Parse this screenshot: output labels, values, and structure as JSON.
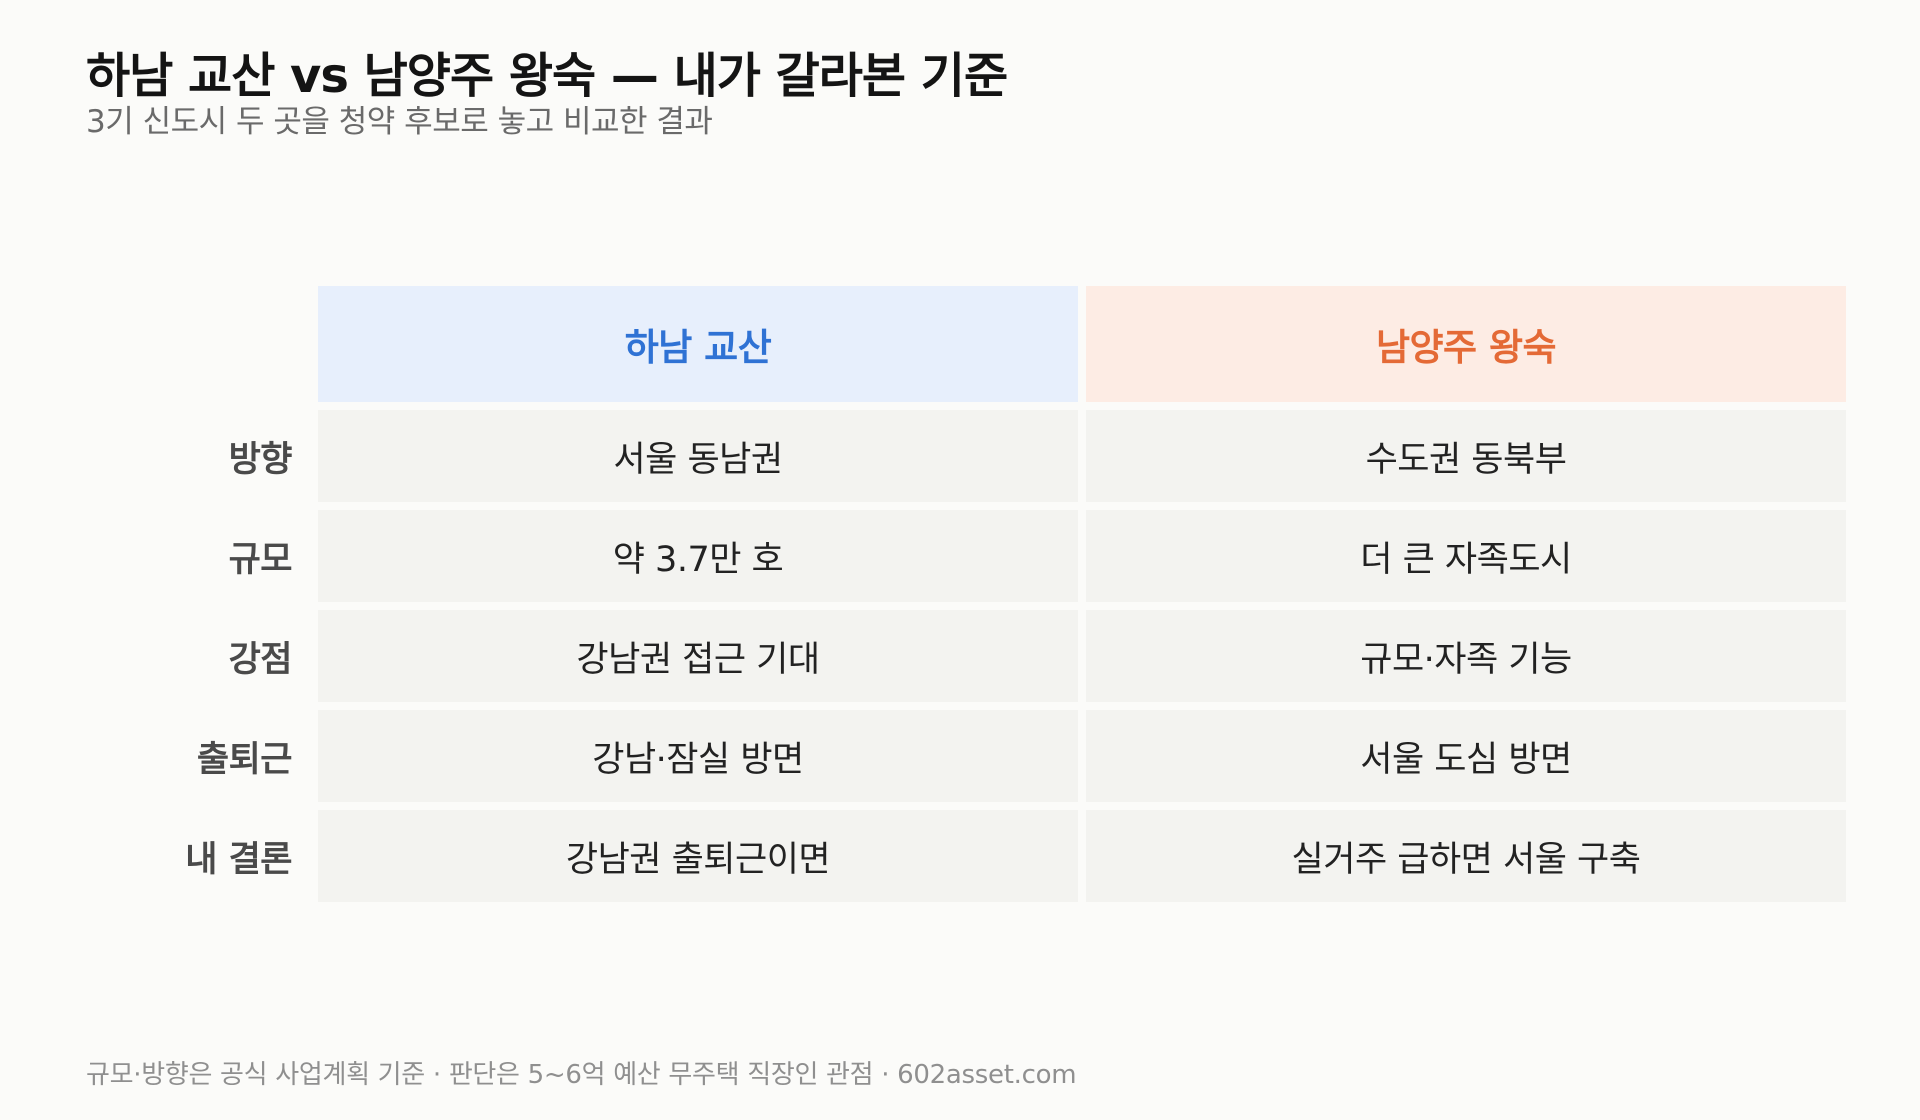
{
  "title": "하남 교산 vs 남양주 왕숙 — 내가 갈라본 기준",
  "subtitle": "3기 신도시 두 곳을 청약 후보로 놓고 비교한 결과",
  "footer": "규모·방향은 공식 사업계획 기준 · 판단은 5~6억 예산 무주택 직장인 관점 · 602asset.com",
  "colors": {
    "background": "#fbfbf9",
    "accent_a": "#2f72d4",
    "accent_a_bg": "#e7effc",
    "accent_b": "#e46a36",
    "accent_b_bg": "#fdece4",
    "cell_bg": "#f3f3f0"
  },
  "chart_data": {
    "type": "table",
    "columns": [
      "하남 교산",
      "남양주 왕숙"
    ],
    "rows": [
      {
        "label": "방향",
        "values": [
          "서울 동남권",
          "수도권 동북부"
        ]
      },
      {
        "label": "규모",
        "values": [
          "약 3.7만 호",
          "더 큰 자족도시"
        ]
      },
      {
        "label": "강점",
        "values": [
          "강남권 접근 기대",
          "규모·자족 기능"
        ]
      },
      {
        "label": "출퇴근",
        "values": [
          "강남·잠실 방면",
          "서울 도심 방면"
        ]
      },
      {
        "label": "내 결론",
        "values": [
          "강남권 출퇴근이면",
          "실거주 급하면 서울 구축"
        ]
      }
    ]
  }
}
